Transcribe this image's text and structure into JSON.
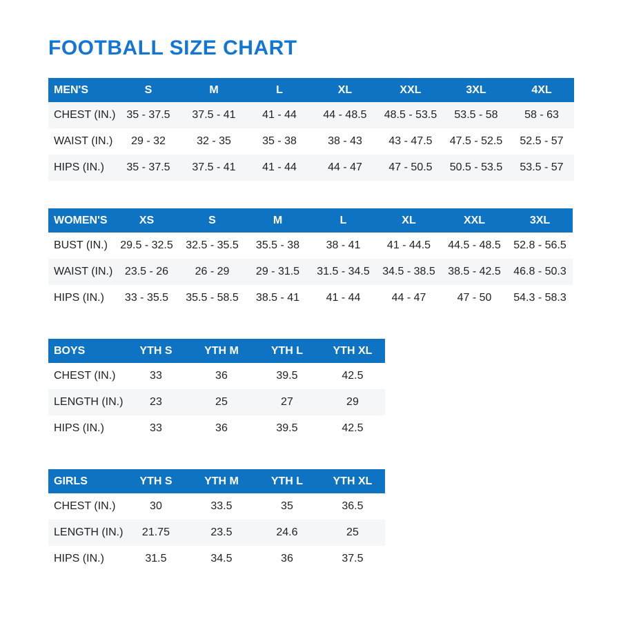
{
  "page_title": "FOOTBALL SIZE CHART",
  "colors": {
    "title_blue": "#1276d2",
    "header_blue": "#0f73c4",
    "row_shaded": "#f5f6f7",
    "cell_text": "#222222"
  },
  "chart_data": {
    "type": "table",
    "title": "FOOTBALL SIZE CHART"
  },
  "tables": [
    {
      "name": "mens",
      "header": [
        "MEN'S",
        "S",
        "M",
        "L",
        "XL",
        "XXL",
        "3XL",
        "4XL"
      ],
      "rows": [
        [
          "CHEST (IN.)",
          "35 - 37.5",
          "37.5 - 41",
          "41 - 44",
          "44 - 48.5",
          "48.5 - 53.5",
          "53.5 - 58",
          "58 - 63"
        ],
        [
          "WAIST (IN.)",
          "29 - 32",
          "32 - 35",
          "35 - 38",
          "38 - 43",
          "43 - 47.5",
          "47.5 - 52.5",
          "52.5 - 57"
        ],
        [
          "HIPS (IN.)",
          "35 - 37.5",
          "37.5 - 41",
          "41 - 44",
          "44 - 47",
          "47 - 50.5",
          "50.5 - 53.5",
          "53.5 - 57"
        ]
      ],
      "shaded_rows": [
        0,
        2
      ]
    },
    {
      "name": "womens",
      "header": [
        "WOMEN'S",
        "XS",
        "S",
        "M",
        "L",
        "XL",
        "XXL",
        "3XL"
      ],
      "rows": [
        [
          "BUST (IN.)",
          "29.5 - 32.5",
          "32.5 - 35.5",
          "35.5 - 38",
          "38 - 41",
          "41 - 44.5",
          "44.5 - 48.5",
          "52.8 - 56.5"
        ],
        [
          "WAIST (IN.)",
          "23.5 - 26",
          "26 - 29",
          "29 - 31.5",
          "31.5 - 34.5",
          "34.5 - 38.5",
          "38.5 - 42.5",
          "46.8 - 50.3"
        ],
        [
          "HIPS (IN.)",
          "33 - 35.5",
          "35.5 - 58.5",
          "38.5 - 41",
          "41 - 44",
          "44 - 47",
          "47 - 50",
          "54.3 - 58.3"
        ]
      ],
      "shaded_rows": [
        1
      ]
    },
    {
      "name": "boys",
      "header": [
        "BOYS",
        "YTH S",
        "YTH M",
        "YTH L",
        "YTH XL"
      ],
      "rows": [
        [
          "CHEST (IN.)",
          "33",
          "36",
          "39.5",
          "42.5"
        ],
        [
          "LENGTH (IN.)",
          "23",
          "25",
          "27",
          "29"
        ],
        [
          "HIPS (IN.)",
          "33",
          "36",
          "39.5",
          "42.5"
        ]
      ],
      "shaded_rows": [
        1
      ]
    },
    {
      "name": "girls",
      "header": [
        "GIRLS",
        "YTH S",
        "YTH M",
        "YTH L",
        "YTH XL"
      ],
      "rows": [
        [
          "CHEST (IN.)",
          "30",
          "33.5",
          "35",
          "36.5"
        ],
        [
          "LENGTH (IN.)",
          "21.75",
          "23.5",
          "24.6",
          "25"
        ],
        [
          "HIPS (IN.)",
          "31.5",
          "34.5",
          "36",
          "37.5"
        ]
      ],
      "shaded_rows": [
        1
      ]
    }
  ]
}
